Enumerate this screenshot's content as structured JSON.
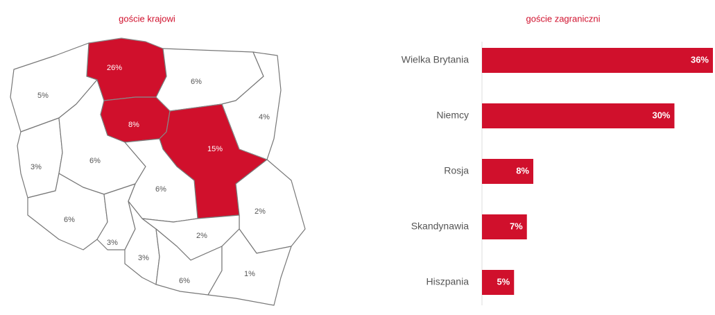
{
  "chart_data": [
    {
      "type": "map",
      "title": "goście krajowi",
      "values": [
        26,
        6,
        4,
        5,
        8,
        15,
        3,
        6,
        6,
        2,
        6,
        3,
        3,
        2,
        6,
        1
      ],
      "value_labels": [
        "26%",
        "6%",
        "4%",
        "5%",
        "8%",
        "15%",
        "3%",
        "6%",
        "6%",
        "2%",
        "6%",
        "3%",
        "3%",
        "2%",
        "6%",
        "1%"
      ],
      "colors": [
        "#d0102c",
        "#ffffff",
        "#ffffff",
        "#ffffff",
        "#d0102c",
        "#d0102c",
        "#ffffff",
        "#ffffff",
        "#ffffff",
        "#ffffff",
        "#ffffff",
        "#ffffff",
        "#ffffff",
        "#ffffff",
        "#ffffff",
        "#ffffff"
      ]
    },
    {
      "type": "hbar",
      "title": "goście zagraniczni",
      "categories": [
        "Wielka Brytania",
        "Niemcy",
        "Rosja",
        "Skandynawia",
        "Hiszpania"
      ],
      "values": [
        36,
        30,
        8,
        7,
        5
      ],
      "value_labels": [
        "36%",
        "30%",
        "8%",
        "7%",
        "5%"
      ],
      "color": "#d0102c"
    }
  ]
}
